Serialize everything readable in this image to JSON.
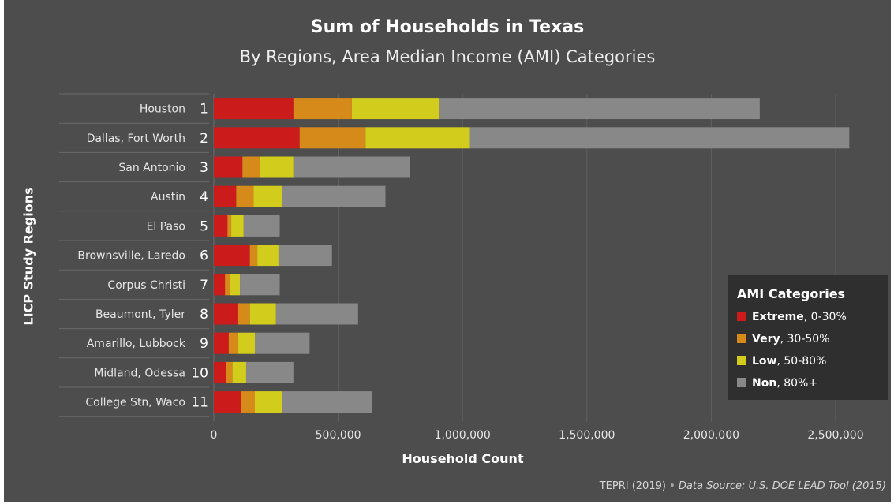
{
  "chart_data": {
    "type": "bar",
    "orientation": "horizontal",
    "stacked": true,
    "title": "Sum of Households in Texas",
    "subtitle": "By Regions, Area Median Income (AMI) Categories",
    "xlabel": "Household Count",
    "ylabel": "LICP Study Regions",
    "xlim": [
      0,
      2500000
    ],
    "xticks": [
      0,
      500000,
      1000000,
      1500000,
      2000000,
      2500000
    ],
    "xtick_labels": [
      "0",
      "500,000",
      "1,000,000",
      "1,500,000",
      "2,000,000",
      "2,500,000"
    ],
    "grid": "vertical",
    "legend_position": "bottom-right",
    "category_numbers": [
      "1",
      "2",
      "3",
      "4",
      "5",
      "6",
      "7",
      "8",
      "9",
      "10",
      "11"
    ],
    "categories": [
      "Houston",
      "Dallas, Fort Worth",
      "San Antonio",
      "Austin",
      "El Paso",
      "Brownsville, Laredo",
      "Corpus Christi",
      "Beaumont, Tyler",
      "Amarillo, Lubbock",
      "Midland, Odessa",
      "College Stn, Waco"
    ],
    "series": [
      {
        "name": "Extreme",
        "range": "0-30%",
        "color": "#cc1b1b",
        "values": [
          320000,
          345000,
          115000,
          90000,
          55000,
          145000,
          45000,
          95000,
          60000,
          50000,
          110000
        ]
      },
      {
        "name": "Very",
        "range": "30-50%",
        "color": "#d68a1a",
        "values": [
          235000,
          265000,
          70000,
          70000,
          15000,
          30000,
          20000,
          50000,
          35000,
          25000,
          55000
        ]
      },
      {
        "name": "Low",
        "range": "50-80%",
        "color": "#d2cd1d",
        "values": [
          350000,
          420000,
          135000,
          115000,
          50000,
          85000,
          40000,
          105000,
          70000,
          55000,
          110000
        ]
      },
      {
        "name": "Non",
        "range": "80%+",
        "color": "#888888",
        "values": [
          1290000,
          1525000,
          470000,
          415000,
          145000,
          215000,
          160000,
          330000,
          220000,
          190000,
          360000
        ]
      }
    ]
  },
  "legend": {
    "title": "AMI Categories",
    "items": [
      {
        "name": "Extreme",
        "range": ", 0-30%"
      },
      {
        "name": "Very",
        "range": ", 30-50%"
      },
      {
        "name": "Low",
        "range": ", 50-80%"
      },
      {
        "name": "Non",
        "range": ", 80%+"
      }
    ]
  },
  "source": {
    "prefix": "TEPRI (2019)",
    "separator": "•",
    "data_source": "Data Source: U.S. DOE LEAD Tool (2015)"
  }
}
